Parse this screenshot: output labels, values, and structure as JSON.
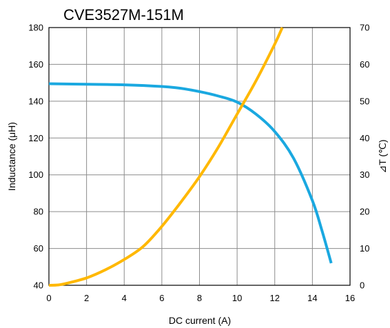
{
  "chart_data": {
    "type": "line",
    "title": "CVE3527M-151M",
    "xlabel": "DC current (A)",
    "ylabel_left": "Inductance (μH)",
    "ylabel_right": "⊿T (℃)",
    "xlim": [
      0,
      16
    ],
    "ylim_left": [
      40,
      180
    ],
    "ylim_right": [
      0,
      70
    ],
    "x_ticks": [
      "0",
      "2",
      "4",
      "6",
      "8",
      "10",
      "12",
      "14",
      "16"
    ],
    "y_left_ticks": [
      "40",
      "60",
      "80",
      "100",
      "120",
      "140",
      "160",
      "180"
    ],
    "y_right_ticks": [
      "0",
      "10",
      "20",
      "30",
      "40",
      "50",
      "60",
      "70"
    ],
    "grid": true,
    "legend": "none",
    "series": [
      {
        "axis": "left",
        "color": "#1aa8e0",
        "points": [
          [
            0,
            149.5
          ],
          [
            2,
            149.2
          ],
          [
            4,
            148.9
          ],
          [
            6,
            148
          ],
          [
            7,
            147
          ],
          [
            8,
            145.2
          ],
          [
            9,
            142.8
          ],
          [
            10,
            139.5
          ],
          [
            11,
            133
          ],
          [
            12,
            123.5
          ],
          [
            13,
            109
          ],
          [
            14,
            86
          ],
          [
            14.5,
            70
          ],
          [
            15,
            52
          ]
        ]
      },
      {
        "axis": "right",
        "color": "#ffb800",
        "points": [
          [
            0,
            0
          ],
          [
            0.5,
            0.1
          ],
          [
            1,
            0.6
          ],
          [
            2,
            2
          ],
          [
            3,
            4.2
          ],
          [
            4,
            7
          ],
          [
            5,
            10.5
          ],
          [
            6,
            16
          ],
          [
            7,
            22.5
          ],
          [
            8,
            29.5
          ],
          [
            9,
            37.5
          ],
          [
            10,
            46.5
          ],
          [
            11,
            55.5
          ],
          [
            12,
            65.5
          ],
          [
            12.4,
            70
          ]
        ]
      }
    ]
  }
}
